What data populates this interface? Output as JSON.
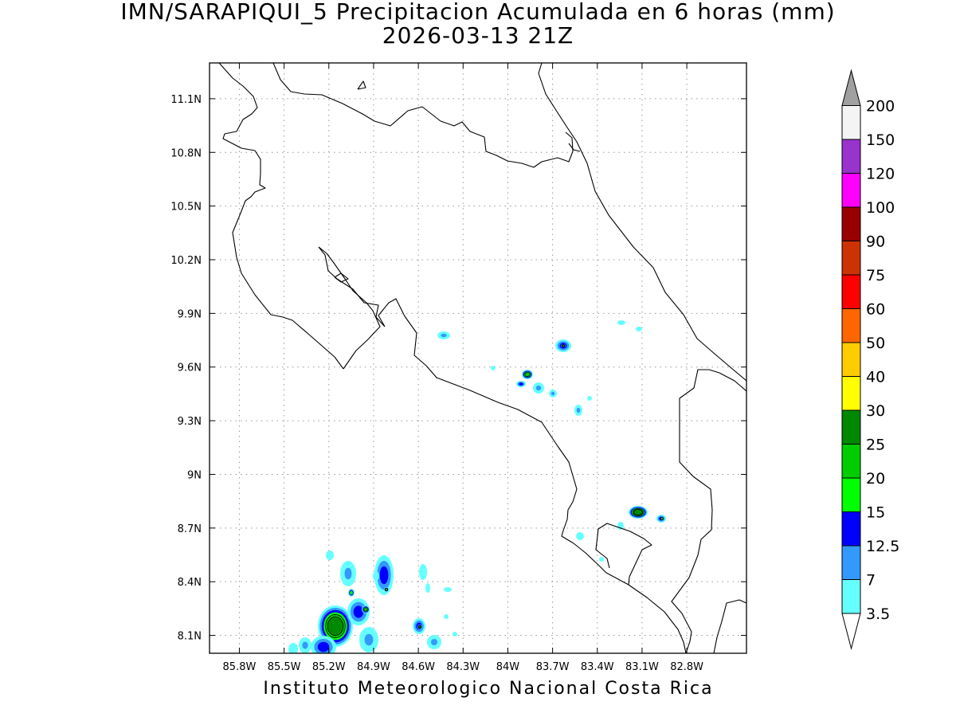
{
  "header": {
    "title_line1": "IMN/SARAPIQUI_5 Precipitacion Acumulada en 6 horas (mm)",
    "title_line2": "2026-03-13 21Z"
  },
  "footer": {
    "credit": "Instituto Meteorologico Nacional Costa Rica"
  },
  "map": {
    "lon_range": [
      -86.0,
      -82.4
    ],
    "lat_range": [
      8.0,
      11.3
    ],
    "x_ticks": [
      {
        "value": -85.8,
        "label": "85.8W"
      },
      {
        "value": -85.5,
        "label": "85.5W"
      },
      {
        "value": -85.2,
        "label": "85.2W"
      },
      {
        "value": -84.9,
        "label": "84.9W"
      },
      {
        "value": -84.6,
        "label": "84.6W"
      },
      {
        "value": -84.3,
        "label": "84.3W"
      },
      {
        "value": -84.0,
        "label": "84W"
      },
      {
        "value": -83.7,
        "label": "83.7W"
      },
      {
        "value": -83.4,
        "label": "83.4W"
      },
      {
        "value": -83.1,
        "label": "83.1W"
      },
      {
        "value": -82.8,
        "label": "82.8W"
      }
    ],
    "y_ticks": [
      {
        "value": 8.1,
        "label": "8.1N"
      },
      {
        "value": 8.4,
        "label": "8.4N"
      },
      {
        "value": 8.7,
        "label": "8.7N"
      },
      {
        "value": 9.0,
        "label": "9N"
      },
      {
        "value": 9.3,
        "label": "9.3N"
      },
      {
        "value": 9.6,
        "label": "9.6N"
      },
      {
        "value": 9.9,
        "label": "9.9N"
      },
      {
        "value": 10.2,
        "label": "10.2N"
      },
      {
        "value": 10.5,
        "label": "10.5N"
      },
      {
        "value": 10.8,
        "label": "10.8N"
      },
      {
        "value": 11.1,
        "label": "11.1N"
      }
    ],
    "grid": "dotted",
    "colors": {
      "3.5": "#66ffff",
      "7": "#3399ff",
      "12.5": "#0000ff",
      "15": "#00ff00",
      "20": "#00cc00",
      "25": "#008800",
      "30": "#ffff00"
    }
  },
  "colorbar": {
    "labels": [
      "3.5",
      "7",
      "12.5",
      "15",
      "20",
      "25",
      "30",
      "40",
      "50",
      "60",
      "75",
      "90",
      "100",
      "120",
      "150",
      "200"
    ],
    "colors": [
      "#66ffff",
      "#3399ff",
      "#0000ff",
      "#00ff00",
      "#00cc00",
      "#008800",
      "#ffff00",
      "#ffcc00",
      "#ff6600",
      "#ff0000",
      "#cc3300",
      "#990000",
      "#ff00ff",
      "#9933cc",
      "#f4f4f4"
    ],
    "top_triangle_color": "#a0a0a0",
    "bottom_triangle_color": "#ffffff"
  }
}
